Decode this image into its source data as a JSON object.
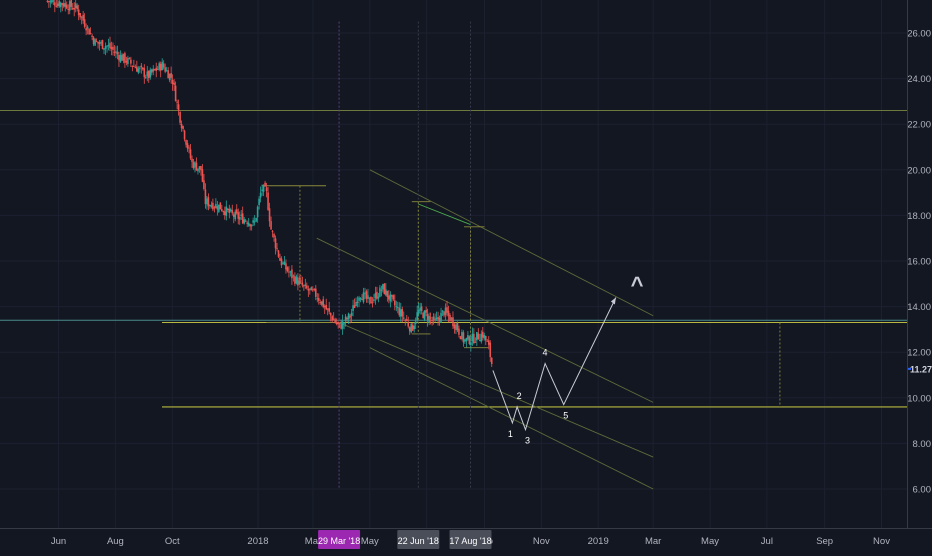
{
  "chart_data": {
    "type": "candlestick",
    "y_ticks": [
      "26.00",
      "24.00",
      "22.00",
      "20.00",
      "18.00",
      "16.00",
      "14.00",
      "12.00",
      "10.00",
      "8.00",
      "6.00"
    ],
    "y_tick_values": [
      26,
      24,
      22,
      20,
      18,
      16,
      14,
      12,
      10,
      8,
      6
    ],
    "current_price": "11.27",
    "x_ticks": [
      "Jun",
      "Aug",
      "Oct",
      "2018",
      "Mar",
      "May",
      "Jul",
      "Sep",
      "Nov",
      "2019",
      "Mar",
      "May",
      "Jul",
      "Sep",
      "Nov"
    ],
    "x_tick_dates": [
      "2017-06-01",
      "2017-08-01",
      "2017-10-01",
      "2018-01-01",
      "2018-03-01",
      "2018-05-01",
      "2018-07-01",
      "2018-09-01",
      "2018-11-01",
      "2019-01-01",
      "2019-03-01",
      "2019-05-01",
      "2019-07-01",
      "2019-09-01",
      "2019-11-01"
    ],
    "date_markers": [
      {
        "label": "29 Mar '18",
        "date": "2018-03-29",
        "color": "#9c27b0"
      },
      {
        "label": "22 Jun '18",
        "date": "2018-06-22",
        "color": "#4a4e59"
      },
      {
        "label": "17 Aug '18",
        "date": "2018-08-17",
        "color": "#4a4e59"
      }
    ],
    "closes": [
      [
        "2017-05-20",
        27.4
      ],
      [
        "2017-06-05",
        27.3
      ],
      [
        "2017-06-20",
        27.1
      ],
      [
        "2017-07-01",
        26.3
      ],
      [
        "2017-07-10",
        25.6
      ],
      [
        "2017-07-25",
        25.4
      ],
      [
        "2017-08-05",
        25.0
      ],
      [
        "2017-08-20",
        24.6
      ],
      [
        "2017-09-05",
        24.1
      ],
      [
        "2017-09-20",
        24.6
      ],
      [
        "2017-10-01",
        24.0
      ],
      [
        "2017-10-08",
        22.5
      ],
      [
        "2017-10-15",
        21.4
      ],
      [
        "2017-10-22",
        20.3
      ],
      [
        "2017-11-01",
        20.0
      ],
      [
        "2017-11-05",
        18.6
      ],
      [
        "2017-11-20",
        18.4
      ],
      [
        "2017-12-05",
        18.0
      ],
      [
        "2017-12-20",
        17.8
      ],
      [
        "2017-12-28",
        17.6
      ],
      [
        "2018-01-05",
        19.2
      ],
      [
        "2018-01-10",
        19.0
      ],
      [
        "2018-01-15",
        17.4
      ],
      [
        "2018-01-25",
        16.0
      ],
      [
        "2018-02-05",
        15.4
      ],
      [
        "2018-02-20",
        14.8
      ],
      [
        "2018-03-05",
        14.5
      ],
      [
        "2018-03-20",
        13.6
      ],
      [
        "2018-03-29",
        13.1
      ],
      [
        "2018-04-10",
        13.6
      ],
      [
        "2018-04-20",
        14.6
      ],
      [
        "2018-05-01",
        14.2
      ],
      [
        "2018-05-15",
        14.8
      ],
      [
        "2018-05-25",
        14.2
      ],
      [
        "2018-06-05",
        13.6
      ],
      [
        "2018-06-15",
        13.0
      ],
      [
        "2018-06-22",
        13.8
      ],
      [
        "2018-07-01",
        13.6
      ],
      [
        "2018-07-10",
        13.3
      ],
      [
        "2018-07-20",
        13.8
      ],
      [
        "2018-08-01",
        13.2
      ],
      [
        "2018-08-10",
        12.5
      ],
      [
        "2018-08-20",
        12.6
      ],
      [
        "2018-08-30",
        12.8
      ],
      [
        "2018-09-05",
        12.3
      ],
      [
        "2018-09-10",
        11.27
      ]
    ],
    "horizontal_levels": [
      {
        "price": 22.6,
        "color": "#6e7a3d"
      },
      {
        "price": 13.4,
        "color": "#4a8a8a"
      },
      {
        "price": 13.3,
        "color": "#b8b840"
      },
      {
        "price": 9.6,
        "color": "#b8b840"
      }
    ],
    "wave_labels": [
      "1",
      "2",
      "3",
      "4",
      "5"
    ],
    "wave_points": [
      [
        "2018-09-10",
        11.2
      ],
      [
        "2018-10-01",
        8.9
      ],
      [
        "2018-10-06",
        9.6
      ],
      [
        "2018-10-15",
        8.6
      ],
      [
        "2018-11-05",
        11.5
      ],
      [
        "2018-11-25",
        9.7
      ],
      [
        "2019-01-20",
        14.4
      ]
    ],
    "caret_label": "^"
  }
}
